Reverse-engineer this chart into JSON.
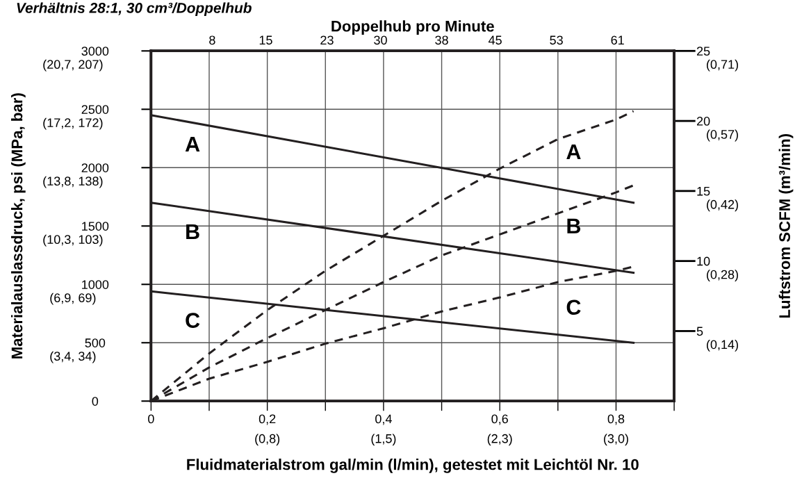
{
  "chart_data": {
    "type": "line",
    "title": "Verhältnis 28:1, 30 cm³/Doppelhub",
    "xlabel": "Fluidmaterialstrom gal/min (l/min), getestet mit Leichtöl Nr. 10",
    "ylabel": "Materialauslassdruck, psi (MPa, bar)",
    "y2label": "Luftstrom SCFM (m³/min)",
    "x2label": "Doppelhub pro Minute",
    "xlim": [
      0,
      0.9
    ],
    "ylim": [
      0,
      3000
    ],
    "y2lim": [
      0,
      25
    ],
    "x2lim": [
      0,
      68.4
    ],
    "xticks": [
      0,
      {
        "value": 0.1,
        "label": null
      },
      {
        "value": 0.2,
        "label": "0,2"
      },
      {
        "value": 0.3,
        "label": null
      },
      {
        "value": 0.4,
        "label": "0,4"
      },
      {
        "value": 0.5,
        "label": null
      },
      {
        "value": 0.6,
        "label": "0,6"
      },
      {
        "value": 0.7,
        "label": null
      },
      {
        "value": 0.8,
        "label": "0,8"
      },
      {
        "value": 0.9,
        "label": null
      }
    ],
    "x2ticks": [
      8,
      15,
      23,
      30,
      38,
      45,
      53,
      61
    ],
    "yticks": [
      0,
      500,
      1000,
      1500,
      2000,
      2500,
      3000
    ],
    "y2ticks": [
      5,
      10,
      15,
      20,
      25
    ],
    "grid": true,
    "legend": false,
    "series": [
      {
        "color": "#231f20",
        "line_style": "solid",
        "x": [
          0,
          0.83
        ],
        "values": [
          2450,
          1700
        ]
      },
      {
        "color": "#231f20",
        "line_style": "solid",
        "x": [
          0,
          0.83
        ],
        "values": [
          1700,
          1100
        ]
      },
      {
        "color": "#231f20",
        "line_style": "solid",
        "x": [
          0,
          0.83
        ],
        "values": [
          940,
          500
        ]
      },
      {
        "color": "#231f20",
        "line_style": "dashed",
        "axis": "y2",
        "x": [
          0,
          0.1,
          0.2,
          0.3,
          0.4,
          0.5,
          0.6,
          0.7,
          0.8,
          0.83
        ],
        "values": [
          0,
          3.4,
          6.5,
          9.3,
          11.8,
          14.3,
          16.6,
          18.7,
          20.1,
          20.7
        ]
      },
      {
        "color": "#231f20",
        "line_style": "dashed",
        "axis": "y2",
        "x": [
          0,
          0.1,
          0.2,
          0.3,
          0.4,
          0.5,
          0.6,
          0.7,
          0.8,
          0.83
        ],
        "values": [
          0,
          2.4,
          4.5,
          6.5,
          8.5,
          10.4,
          11.9,
          13.4,
          14.9,
          15.4
        ]
      },
      {
        "color": "#231f20",
        "line_style": "dashed",
        "axis": "y2",
        "x": [
          0,
          0.1,
          0.2,
          0.3,
          0.4,
          0.5,
          0.6,
          0.7,
          0.8,
          0.83
        ],
        "values": [
          0,
          1.6,
          2.8,
          4.1,
          5.2,
          6.4,
          7.4,
          8.5,
          9.3,
          9.6
        ]
      }
    ],
    "annotations": [
      "A",
      "B",
      "C",
      "A",
      "B",
      "C",
      "(3,4, 34)",
      "(6,9, 69)",
      "(10,3, 103)",
      "(13,8, 138)",
      "(17,2, 172)",
      "(20,7, 207)",
      "(0,14)",
      "(0,28)",
      "(0,42)",
      "(0,57)",
      "(0,71)",
      "(0,8)",
      "(1,5)",
      "(2,3)",
      "(3,0)"
    ]
  }
}
